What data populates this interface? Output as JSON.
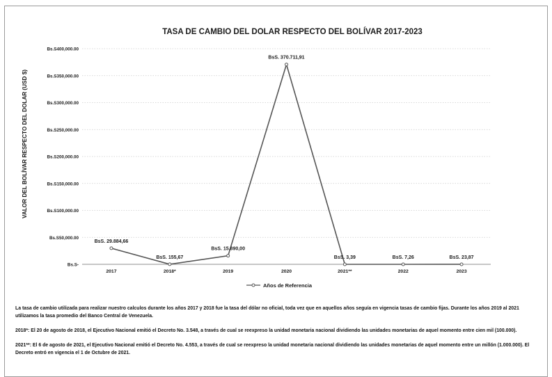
{
  "chart_data": {
    "type": "line",
    "title": "TASA DE CAMBIO DEL DOLAR RESPECTO DEL BOLÍVAR 2017-2023",
    "ylabel": "VALOR DEL BOLÍVAR RESPECTO DEL DOLAR (USD $)",
    "xlabel": "",
    "categories": [
      "2017",
      "2018*",
      "2019",
      "2020",
      "2021**",
      "2022",
      "2023"
    ],
    "series": [
      {
        "name": "Años de Referencia",
        "values": [
          29884.66,
          155.67,
          15890.0,
          370711.91,
          3.39,
          7.26,
          23.87
        ]
      }
    ],
    "data_labels": [
      "BsS. 29.884,66",
      "BsS. 155,67",
      "BsS. 15.890,00",
      "BsS. 370.711,91",
      "BsS. 3,39",
      "BsS. 7,26",
      "BsS. 23,87"
    ],
    "ylim": [
      0,
      400000
    ],
    "yticks": [
      {
        "value": 0,
        "label": "Bs.S-"
      },
      {
        "value": 50000,
        "label": "Bs.S50,000.00"
      },
      {
        "value": 100000,
        "label": "Bs.S100,000.00"
      },
      {
        "value": 150000,
        "label": "Bs.S150,000.00"
      },
      {
        "value": 200000,
        "label": "Bs.S200,000.00"
      },
      {
        "value": 250000,
        "label": "Bs.S250,000.00"
      },
      {
        "value": 300000,
        "label": "Bs.S300,000.00"
      },
      {
        "value": 350000,
        "label": "Bs.S350,000.00"
      },
      {
        "value": 400000,
        "label": "Bs.S400,000.00"
      }
    ],
    "grid": "horizontal-dotted",
    "legend": "bottom",
    "colors": {
      "line": "#555555",
      "marker_fill": "#ffffff",
      "grid": "#cccccc",
      "axis": "#8c8c8c",
      "text": "#1a1a1a"
    }
  },
  "notes": [
    "La tasa de cambio utilizada para realizar nuestro calculos durante los años 2017 y 2018 fue la tasa del dólar no oficial, toda vez que en aquellos años seguía en vigencia tasas de cambio fijas. Durante los años 2019 al 2021 utilizamos la tasa promedio del Banco Central de Venezuela.",
    "2018*: El 20 de agosto de 2018, el Ejecutivo Nacional emitió el Decreto No. 3.548, a través de cual se reexpreso la unidad monetaria nacional dividiendo las unidades monetarias de aquel momento entre cien mil (100.000).",
    "2021**: El 6 de agosto de 2021, el Ejecutivo Nacional emitió el Decreto No. 4.553, a través de cual se reexpreso la unidad monetaria nacional dividiendo las unidades monetarias de aquel momento entre un millón (1.000.000). El Decreto entró en vigencia el 1 de Octubre de 2021."
  ]
}
